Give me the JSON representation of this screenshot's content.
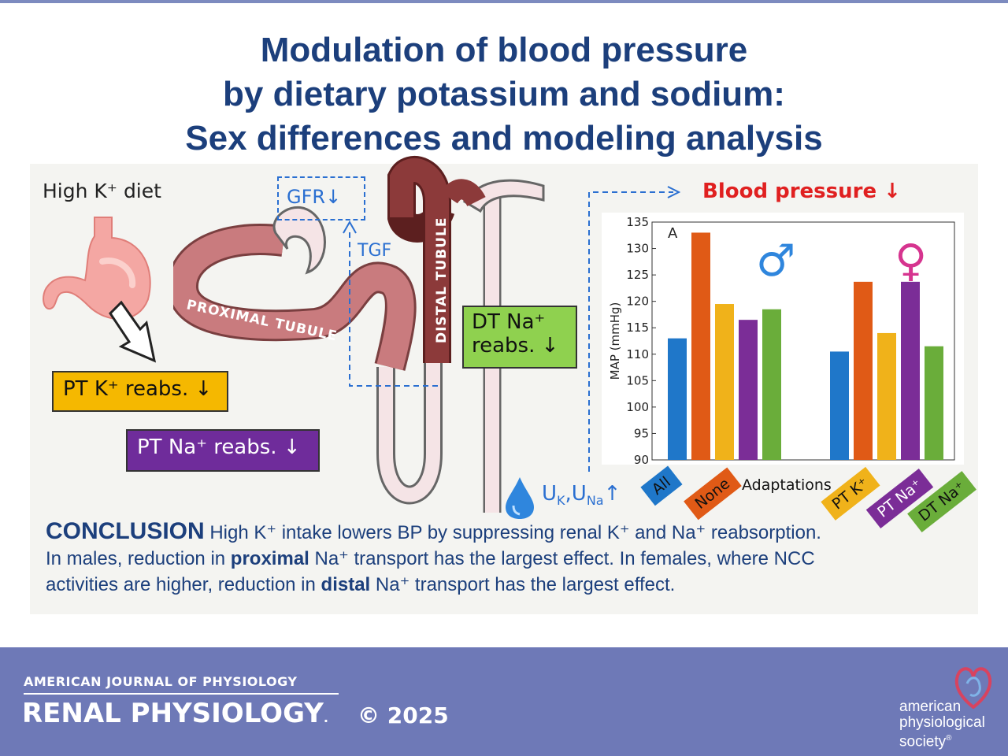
{
  "title": {
    "line1": "Modulation of blood pressure",
    "line2": "by dietary potassium and sodium:",
    "line3": "Sex differences and modeling analysis"
  },
  "diagram": {
    "high_k_diet": "High K⁺ diet",
    "pt_k_reabs": "PT K⁺ reabs. ↓",
    "pt_na_reabs": "PT Na⁺ reabs. ↓",
    "gfr": "GFR↓",
    "tgf": "TGF",
    "proximal_tubule": "PROXIMAL TUBULE",
    "distal_tubule": "DISTAL TUBULE",
    "dt_na_line1": "DT Na⁺",
    "dt_na_line2": "reabs. ↓",
    "urine": "U",
    "urine_k_sub": "K",
    "urine_sep": ",U",
    "urine_na_sub": "Na",
    "urine_arrow": "↑",
    "blood_pressure": "Blood pressure ↓",
    "colors": {
      "pt_k_box": "#f5b800",
      "pt_na_box": "#6f2c9b",
      "dt_na_box": "#8fd14f",
      "arrow_blue": "#2a6fd1",
      "bp_red": "#e02020",
      "tubule_pink": "#c97b7e",
      "tubule_dark": "#8c3a3a"
    }
  },
  "chart_data": {
    "type": "bar",
    "panel_label": "A",
    "ylabel": "MAP (mmHg)",
    "xlabel": "Adaptations",
    "ylim": [
      90,
      135
    ],
    "yticks": [
      90,
      95,
      100,
      105,
      110,
      115,
      120,
      125,
      130,
      135
    ],
    "groups": [
      {
        "symbol": "♂",
        "values": [
          113,
          133,
          119.5,
          116.5,
          118.5
        ]
      },
      {
        "symbol": "♀",
        "values": [
          110.5,
          123.7,
          114,
          123.7,
          111.5
        ]
      }
    ],
    "categories": [
      "All",
      "None",
      "PT K⁺",
      "PT Na⁺",
      "DT Na⁺"
    ],
    "colors": [
      "#1f77c9",
      "#e05a16",
      "#f0b21a",
      "#7b2d97",
      "#6aad3a"
    ]
  },
  "conclusion": {
    "heading": "CONCLUSION",
    "line1_rest": " High K⁺ intake lowers BP by suppressing renal K⁺ and Na⁺ reabsorption.",
    "line2_a": "In males, reduction in ",
    "line2_bold": "proximal",
    "line2_b": " Na⁺ transport has the largest effect. In females, where NCC",
    "line3_a": "activities are higher, reduction in ",
    "line3_bold": "distal",
    "line3_b": " Na⁺ transport has the largest effect."
  },
  "footer": {
    "journal_line": "AMERICAN JOURNAL OF PHYSIOLOGY",
    "journal_name": "RENAL PHYSIOLOGY",
    "dot": ".",
    "copyright": "© 2025",
    "society_line1": "american",
    "society_line2": "physiological",
    "society_line3": "society",
    "society_mark": "®"
  }
}
